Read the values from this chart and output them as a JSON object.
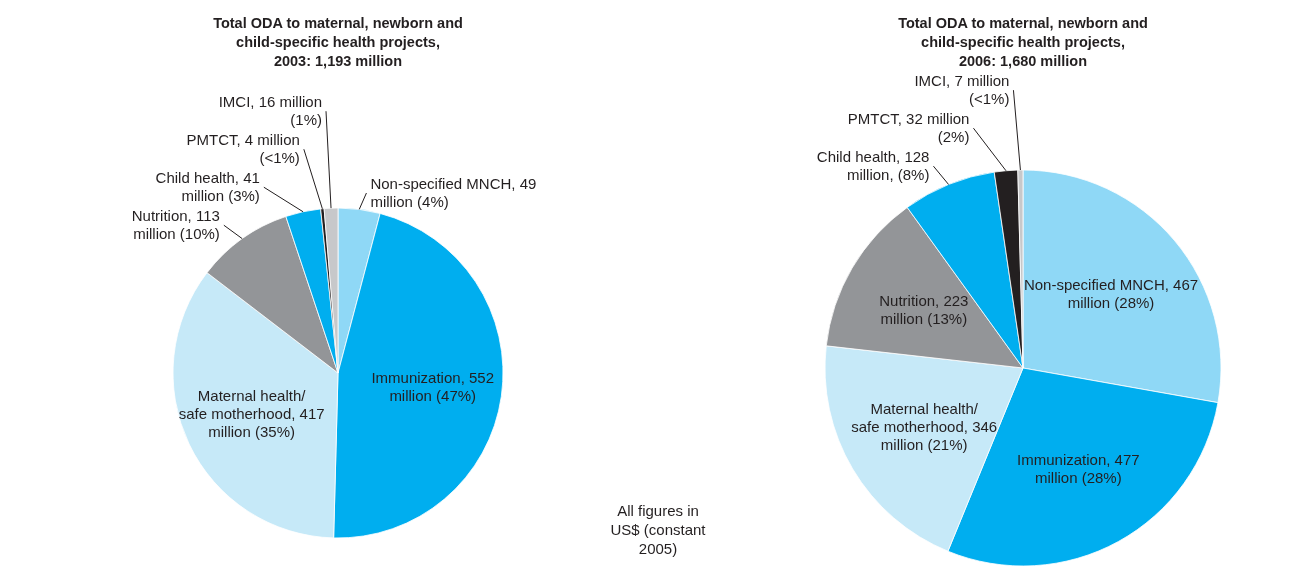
{
  "chart_data": [
    {
      "type": "pie",
      "title": "Total ODA to maternal, newborn and child-specific health projects, 2003: 1,193 million",
      "categories": [
        "Non-specified MNCH",
        "Immunization",
        "Maternal health/ safe motherhood",
        "Nutrition",
        "Child health",
        "PMTCT",
        "IMCI"
      ],
      "values": [
        49000000,
        552000000,
        417000000,
        113000000,
        41000000,
        4000000,
        16000000
      ],
      "value_labels": [
        "49 million (4%)",
        "552 million (47%)",
        "417 million (35%)",
        "113 million (10%)",
        "41 million (3%)",
        "4 million (<1%)",
        "16 million (1%)"
      ],
      "colors": [
        "#8fd8f6",
        "#00aeef",
        "#c6e9f8",
        "#939598",
        "#00aeef",
        "#231f20",
        "#c7c8ca"
      ],
      "legend": false
    },
    {
      "type": "pie",
      "title": "Total ODA to maternal, newborn and child-specific health projects, 2006: 1,680 million",
      "categories": [
        "Non-specified MNCH",
        "Immunization",
        "Maternal health/ safe motherhood",
        "Nutrition",
        "Child health",
        "PMTCT",
        "IMCI"
      ],
      "values": [
        467000000,
        477000000,
        346000000,
        223000000,
        128000000,
        32000000,
        7000000
      ],
      "value_labels": [
        "467 million (28%)",
        "477 million (28%)",
        "346 million (21%)",
        "223 million (13%)",
        "128 million, (8%)",
        "32 million (2%)",
        "7 million (<1%)"
      ],
      "colors": [
        "#8fd8f6",
        "#00aeef",
        "#c6e9f8",
        "#939598",
        "#00aeef",
        "#231f20",
        "#c7c8ca"
      ],
      "legend": false,
      "annotations": [
        "All figures in US$ (constant 2005)"
      ]
    }
  ]
}
